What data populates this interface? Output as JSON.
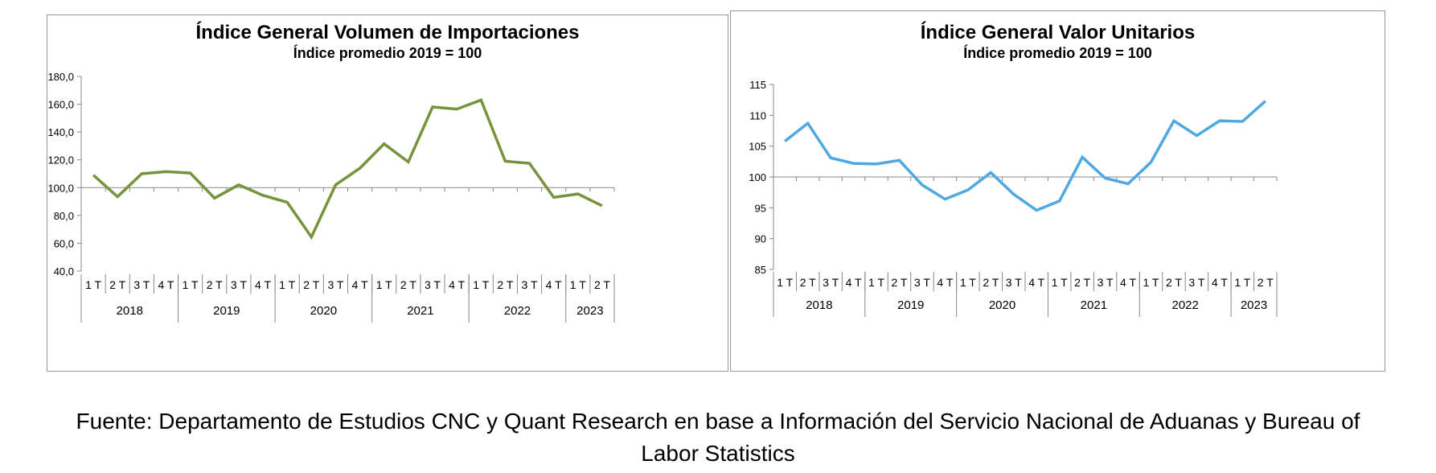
{
  "chart_data": [
    {
      "type": "line",
      "title": "Índice General Volumen de Importaciones",
      "subtitle": "Índice promedio 2019 = 100",
      "xlabel": "",
      "ylabel": "",
      "ylim": [
        40,
        180
      ],
      "ystep": 20,
      "ytick_labels": [
        "40,0",
        "60,0",
        "80,0",
        "100,0",
        "120,0",
        "140,0",
        "160,0",
        "180,0"
      ],
      "baseline": 100,
      "color": "#77933c",
      "grid": false,
      "categories": [
        "1 T",
        "2 T",
        "3 T",
        "4 T",
        "1 T",
        "2 T",
        "3 T",
        "4 T",
        "1 T",
        "2 T",
        "3 T",
        "4 T",
        "1 T",
        "2 T",
        "3 T",
        "4 T",
        "1 T",
        "2 T",
        "3 T",
        "4 T",
        "1 T",
        "2 T"
      ],
      "years": [
        {
          "label": "2018",
          "count": 4
        },
        {
          "label": "2019",
          "count": 4
        },
        {
          "label": "2020",
          "count": 4
        },
        {
          "label": "2021",
          "count": 4
        },
        {
          "label": "2022",
          "count": 4
        },
        {
          "label": "2023",
          "count": 2
        }
      ],
      "values": [
        109.0,
        93.5,
        110.0,
        111.5,
        110.5,
        92.5,
        102.0,
        94.5,
        89.5,
        64.5,
        102.0,
        114.0,
        131.5,
        118.5,
        158.0,
        156.5,
        163.0,
        119.0,
        117.5,
        93.0,
        95.5,
        87.0
      ]
    },
    {
      "type": "line",
      "title": "Índice General Valor Unitarios",
      "subtitle": "Índice promedio 2019 = 100",
      "xlabel": "",
      "ylabel": "",
      "ylim": [
        85,
        115
      ],
      "ystep": 5,
      "ytick_labels": [
        "85",
        "90",
        "95",
        "100",
        "105",
        "110",
        "115"
      ],
      "baseline": 100,
      "color": "#4ea9e3",
      "grid": false,
      "categories": [
        "1 T",
        "2 T",
        "3 T",
        "4 T",
        "1 T",
        "2 T",
        "3 T",
        "4 T",
        "1 T",
        "2 T",
        "3 T",
        "4 T",
        "1 T",
        "2 T",
        "3 T",
        "4 T",
        "1 T",
        "2 T",
        "3 T",
        "4 T",
        "1 T",
        "2 T"
      ],
      "years": [
        {
          "label": "2018",
          "count": 4
        },
        {
          "label": "2019",
          "count": 4
        },
        {
          "label": "2020",
          "count": 4
        },
        {
          "label": "2021",
          "count": 4
        },
        {
          "label": "2022",
          "count": 4
        },
        {
          "label": "2023",
          "count": 2
        }
      ],
      "values": [
        105.8,
        108.7,
        103.1,
        102.2,
        102.1,
        102.7,
        98.7,
        96.4,
        97.9,
        100.7,
        97.2,
        94.6,
        96.1,
        103.2,
        99.8,
        98.9,
        102.4,
        109.1,
        106.7,
        109.1,
        109.0,
        112.3
      ]
    }
  ],
  "source": {
    "line1": "Fuente: Departamento de Estudios CNC y Quant Research en base a Información del Servicio Nacional de Aduanas y Bureau of",
    "line2": "Labor Statistics"
  }
}
